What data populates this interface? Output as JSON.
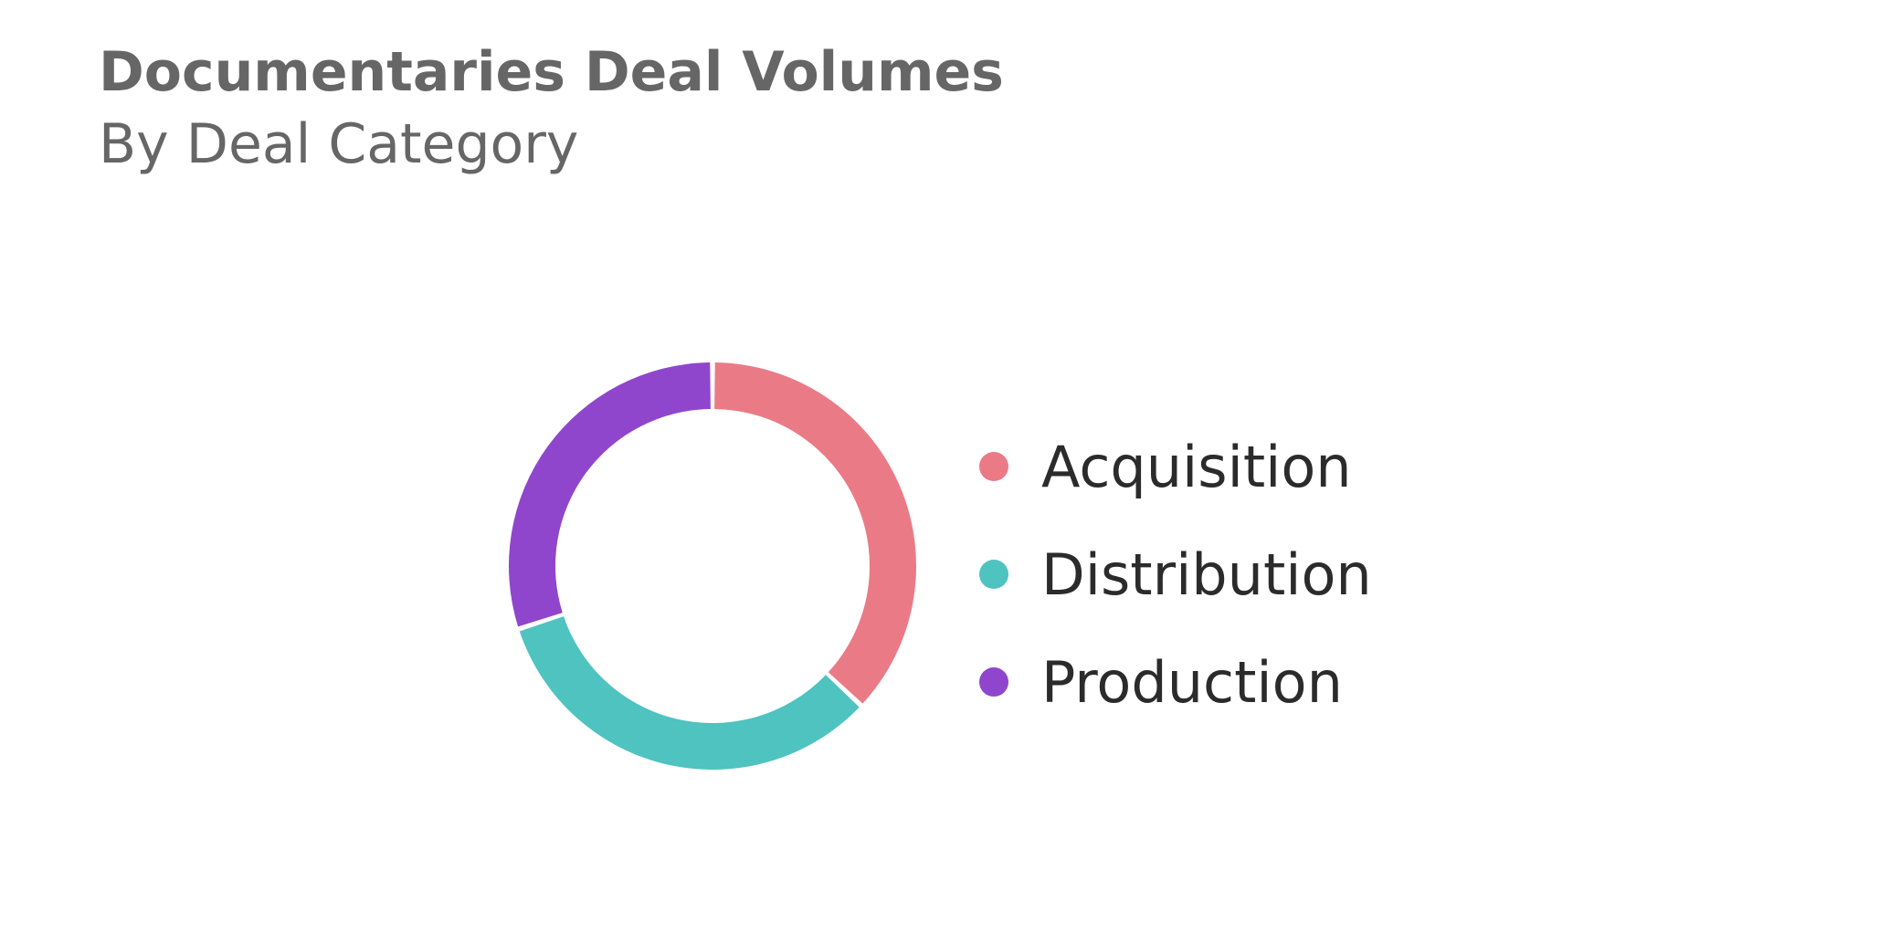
{
  "chart_data": {
    "type": "pie",
    "title": "Documentaries Deal Volumes",
    "subtitle": "By Deal Category",
    "categories": [
      "Acquisition",
      "Distribution",
      "Production"
    ],
    "values": [
      37,
      33,
      30
    ],
    "colors": [
      "#ea7b86",
      "#4ec3c0",
      "#8f46cc"
    ],
    "donut": true,
    "legend_position": "right"
  }
}
